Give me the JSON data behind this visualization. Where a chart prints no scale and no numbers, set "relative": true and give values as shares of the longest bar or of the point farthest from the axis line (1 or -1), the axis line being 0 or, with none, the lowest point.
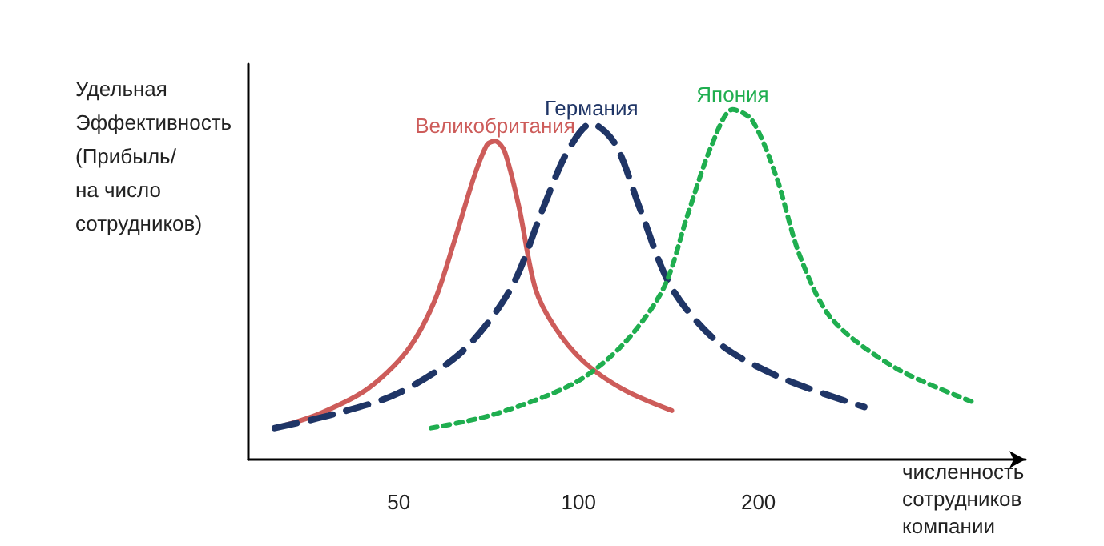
{
  "chart_data": {
    "type": "line",
    "relative": true,
    "log": "x",
    "xlabel": "численность\nсотрудников\nкомпании",
    "ylabel": "Удельная\nЭффективность\n(Прибыль/\nна число\nсотрудников)",
    "xlim": [
      28,
      560
    ],
    "xticks": [
      50,
      100,
      200
    ],
    "tick_labels": "x",
    "grid": false,
    "legend": false,
    "marker": "none",
    "series": [
      {
        "name": "Великобритания",
        "color": "#cd5c5a",
        "line_style": "solid",
        "x": [
          31.0,
          36.7,
          44.2,
          51.6,
          57.3,
          62.1,
          66.9,
          70.3,
          72.5,
          75.2,
          79.5,
          84.6,
          91.1,
          101.9,
          118.9,
          143.2
        ],
        "values": [
          0.09,
          0.13,
          0.2,
          0.31,
          0.45,
          0.63,
          0.81,
          0.9,
          0.91,
          0.88,
          0.72,
          0.49,
          0.38,
          0.28,
          0.2,
          0.14
        ]
      },
      {
        "name": "Германия",
        "color": "#1f3566",
        "line_style": "dashed",
        "x": [
          31.0,
          39.0,
          50.0,
          64.0,
          77.1,
          87.3,
          95.8,
          105.1,
          115.3,
          126.5,
          143.2,
          172.4,
          220.8,
          300.9
        ],
        "values": [
          0.09,
          0.13,
          0.19,
          0.31,
          0.49,
          0.72,
          0.88,
          0.96,
          0.9,
          0.72,
          0.49,
          0.33,
          0.23,
          0.15
        ]
      },
      {
        "name": "Япония",
        "color": "#1fae4f",
        "line_style": "dotted",
        "x": [
          56.6,
          72.5,
          98.8,
          118.9,
          138.8,
          152.3,
          167.2,
          181.1,
          195.1,
          214.1,
          234.9,
          265.9,
          340.6,
          464.0
        ],
        "values": [
          0.09,
          0.13,
          0.22,
          0.33,
          0.49,
          0.7,
          0.9,
          1,
          0.97,
          0.81,
          0.58,
          0.4,
          0.26,
          0.16
        ]
      }
    ]
  }
}
